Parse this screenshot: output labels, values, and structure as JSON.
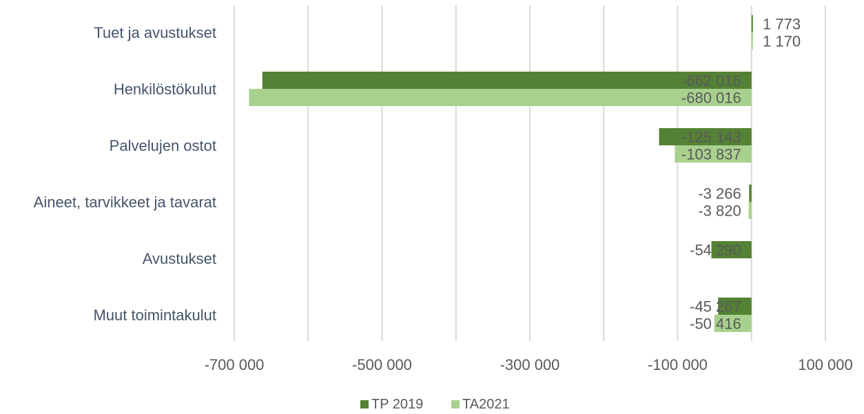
{
  "chart_data": {
    "type": "bar",
    "orientation": "horizontal",
    "categories": [
      "Tuet ja avustukset",
      "Henkilöstökulut",
      "Palvelujen ostot",
      "Aineet, tarvikkeet ja tavarat",
      "Avustukset",
      "Muut toimintakulut"
    ],
    "series": [
      {
        "name": "TP 2019",
        "color": "#548235",
        "values": [
          1773,
          -662016,
          -125143,
          -3266,
          -54290,
          -45267
        ]
      },
      {
        "name": "TA2021",
        "color": "#a9d18e",
        "values": [
          1170,
          -680016,
          -103837,
          -3820,
          null,
          -50416
        ]
      }
    ],
    "data_labels": [
      [
        "1 773",
        "-662 016",
        "-125 143",
        "-3 266",
        "-54 290",
        "-45 267"
      ],
      [
        "1 170",
        "-680 016",
        "-103 837",
        "-3 820",
        "",
        "-50 416"
      ]
    ],
    "xlim": [
      -700000,
      100000
    ],
    "x_ticks": [
      -700000,
      -500000,
      -300000,
      -100000,
      100000
    ],
    "x_tick_labels": [
      "-700 000",
      "-500 000",
      "-300 000",
      "-100 000",
      "100 000"
    ],
    "grid": true,
    "legend_position": "bottom",
    "title": "",
    "xlabel": "",
    "ylabel": ""
  }
}
